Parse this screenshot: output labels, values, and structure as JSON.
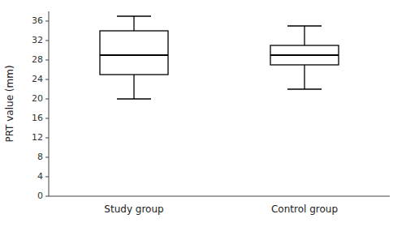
{
  "chart_data": {
    "type": "box",
    "categories": [
      "Study group",
      "Control group"
    ],
    "boxes": [
      {
        "whisker_low": 20,
        "q1": 25,
        "median": 29,
        "q3": 34,
        "whisker_high": 37
      },
      {
        "whisker_low": 22,
        "q1": 27,
        "median": 29,
        "q3": 31,
        "whisker_high": 35
      }
    ],
    "ylabel": "PRT value (mm)",
    "ylim": [
      0,
      38
    ],
    "yticks": [
      0,
      4,
      8,
      12,
      16,
      20,
      24,
      28,
      32,
      36
    ],
    "color": "#000000"
  }
}
